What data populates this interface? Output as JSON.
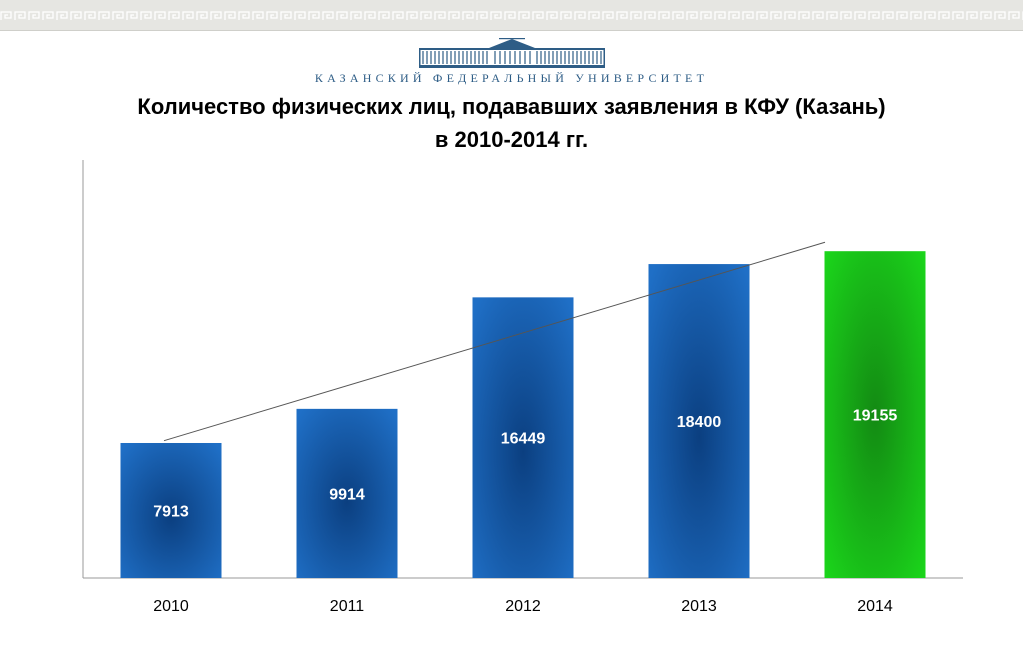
{
  "header": {
    "university_name": "КАЗАНСКИЙ ФЕДЕРАЛЬНЫЙ УНИВЕРСИТЕТ",
    "logo_icon": "university-building-icon",
    "border_pattern": "greek-key-pattern"
  },
  "colors": {
    "bar_blue": "#1f6fc6",
    "bar_blue_dark": "#0b3f80",
    "bar_green": "#1bd61b",
    "bar_green_dark": "#138a13",
    "logo_blue": "#2e5d86"
  },
  "chart_data": {
    "type": "bar",
    "title": "Количество физических лиц, подававших заявления в КФУ (Казань)",
    "subtitle": "в 2010-2014 гг.",
    "categories": [
      "2010",
      "2011",
      "2012",
      "2013",
      "2014"
    ],
    "values": [
      7913,
      9914,
      16449,
      18400,
      19155
    ],
    "data_labels": [
      "7913",
      "9914",
      "16449",
      "18400",
      "19155"
    ],
    "highlighted_category": "2014",
    "trendline": "linear",
    "ylim": [
      0,
      24500
    ],
    "xlabel": "",
    "ylabel": "",
    "grid": false,
    "legend": "none"
  }
}
